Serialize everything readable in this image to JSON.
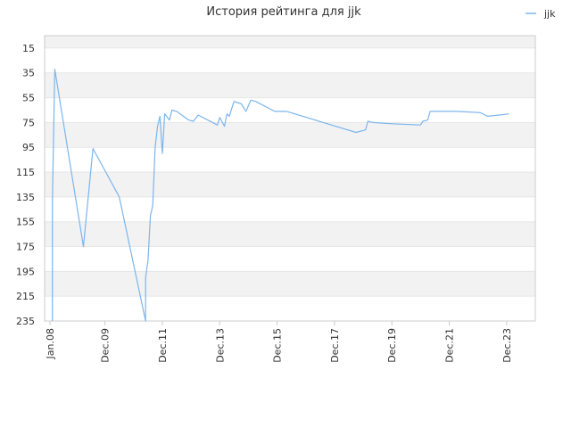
{
  "chart_data": {
    "type": "line",
    "title": "История рейтинга для jjk",
    "xlabel": "",
    "ylabel": "",
    "y_inverted": true,
    "ylim": [
      5,
      235
    ],
    "y_ticks": [
      15,
      35,
      55,
      75,
      95,
      115,
      135,
      155,
      175,
      195,
      215,
      235
    ],
    "x_range": [
      "2008-01",
      "2024-12"
    ],
    "x_ticks": [
      {
        "date": "2008-01",
        "label": "Jan.08"
      },
      {
        "date": "2009-12",
        "label": "Dec.09"
      },
      {
        "date": "2011-12",
        "label": "Dec.11"
      },
      {
        "date": "2013-12",
        "label": "Dec.13"
      },
      {
        "date": "2015-12",
        "label": "Dec.15"
      },
      {
        "date": "2017-12",
        "label": "Dec.17"
      },
      {
        "date": "2019-12",
        "label": "Dec.19"
      },
      {
        "date": "2021-12",
        "label": "Dec.21"
      },
      {
        "date": "2023-12",
        "label": "Dec.23"
      }
    ],
    "grid": true,
    "legend_position": "top-right",
    "colors": {
      "series": "#7cb5ec",
      "band": "#f2f2f2",
      "grid": "#e6e6e6"
    },
    "series": [
      {
        "name": "jjk",
        "points": [
          {
            "x": "2008-02",
            "y": 235
          },
          {
            "x": "2008-02",
            "y": 140
          },
          {
            "x": "2008-03",
            "y": 32
          },
          {
            "x": "2009-03",
            "y": 175
          },
          {
            "x": "2009-07",
            "y": 96
          },
          {
            "x": "2010-06",
            "y": 135
          },
          {
            "x": "2011-05",
            "y": 235
          },
          {
            "x": "2011-05",
            "y": 200
          },
          {
            "x": "2011-06",
            "y": 186
          },
          {
            "x": "2011-07",
            "y": 150
          },
          {
            "x": "2011-08",
            "y": 142
          },
          {
            "x": "2011-09",
            "y": 95
          },
          {
            "x": "2011-10",
            "y": 78
          },
          {
            "x": "2011-11",
            "y": 70
          },
          {
            "x": "2011-12",
            "y": 100
          },
          {
            "x": "2012-01",
            "y": 68
          },
          {
            "x": "2012-03",
            "y": 73
          },
          {
            "x": "2012-04",
            "y": 65
          },
          {
            "x": "2012-06",
            "y": 66
          },
          {
            "x": "2012-11",
            "y": 73
          },
          {
            "x": "2013-01",
            "y": 74
          },
          {
            "x": "2013-03",
            "y": 69
          },
          {
            "x": "2013-11",
            "y": 77
          },
          {
            "x": "2013-12",
            "y": 71
          },
          {
            "x": "2014-02",
            "y": 78
          },
          {
            "x": "2014-03",
            "y": 68
          },
          {
            "x": "2014-04",
            "y": 70
          },
          {
            "x": "2014-06",
            "y": 58
          },
          {
            "x": "2014-09",
            "y": 60
          },
          {
            "x": "2014-11",
            "y": 66
          },
          {
            "x": "2015-01",
            "y": 57
          },
          {
            "x": "2015-03",
            "y": 58
          },
          {
            "x": "2015-11",
            "y": 66
          },
          {
            "x": "2016-04",
            "y": 66
          },
          {
            "x": "2018-09",
            "y": 83
          },
          {
            "x": "2019-01",
            "y": 81
          },
          {
            "x": "2019-02",
            "y": 74
          },
          {
            "x": "2019-04",
            "y": 75
          },
          {
            "x": "2019-12",
            "y": 76
          },
          {
            "x": "2020-12",
            "y": 77
          },
          {
            "x": "2021-01",
            "y": 74
          },
          {
            "x": "2021-03",
            "y": 73
          },
          {
            "x": "2021-04",
            "y": 66
          },
          {
            "x": "2022-03",
            "y": 66
          },
          {
            "x": "2023-01",
            "y": 67
          },
          {
            "x": "2023-04",
            "y": 70
          },
          {
            "x": "2023-09",
            "y": 69
          },
          {
            "x": "2024-01",
            "y": 68
          }
        ]
      }
    ]
  }
}
